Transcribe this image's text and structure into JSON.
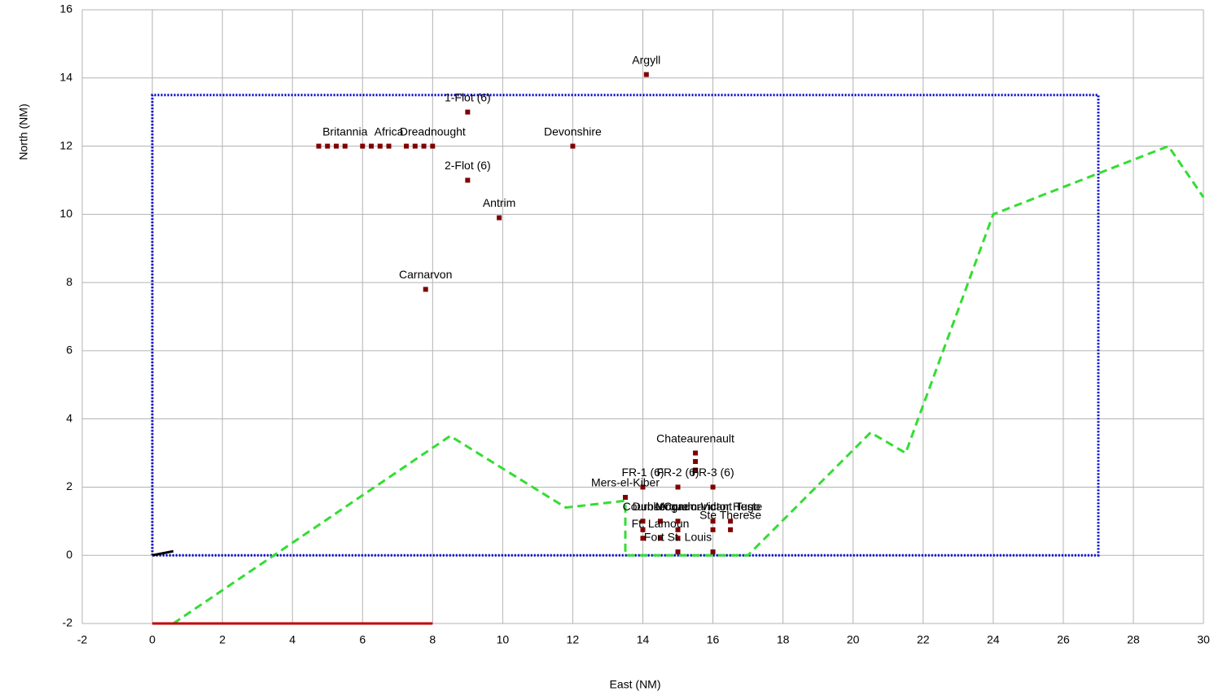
{
  "chart_data": {
    "type": "scatter",
    "x_label": "East (NM)",
    "y_label": "North (NM)",
    "xlim": [
      -2,
      30
    ],
    "ylim": [
      -2,
      16
    ],
    "xticks": [
      -2,
      0,
      2,
      4,
      6,
      8,
      10,
      12,
      14,
      16,
      18,
      20,
      22,
      24,
      26,
      28,
      30
    ],
    "yticks": [
      -2,
      0,
      2,
      4,
      6,
      8,
      10,
      12,
      14,
      16
    ],
    "grid": true,
    "points": {
      "color": "#800000",
      "x": [
        14.1,
        9,
        4.75,
        5,
        5.25,
        5.5,
        6,
        6.25,
        6.5,
        6.75,
        7.25,
        7.5,
        7.75,
        8,
        12,
        9,
        9.9,
        7.8,
        15.5,
        15.5,
        15.5,
        14,
        15,
        16,
        13.5,
        14,
        14,
        14,
        14.5,
        14.5,
        15,
        15,
        15,
        15,
        16,
        16,
        16,
        16.5,
        16.5
      ],
      "y": [
        14.1,
        13,
        12,
        12,
        12,
        12,
        12,
        12,
        12,
        12,
        12,
        12,
        12,
        12,
        12,
        11,
        9.9,
        7.8,
        3,
        2.75,
        2.5,
        2,
        2,
        2,
        1.7,
        1,
        0.75,
        0.5,
        1,
        0.5,
        1,
        0.75,
        0.5,
        0.1,
        1,
        0.75,
        0.1,
        1,
        0.75
      ],
      "labels": [
        "Argyll",
        "1-Flot (6)",
        null,
        null,
        null,
        "Britannia",
        null,
        null,
        null,
        "Africa",
        null,
        null,
        null,
        "Dreadnought",
        "Devonshire",
        "2-Flot (6)",
        "Antrim",
        "Carnarvon",
        "Chateaurenault",
        null,
        null,
        "FR-1 (6)",
        "FR-2 (6)",
        "FR-3 (6)",
        "Mers-el-Kiber",
        "Courbet",
        null,
        null,
        "Dunkerque",
        "Ft. Lamoun",
        "Mogador",
        null,
        null,
        "Fort St. Louis",
        "Commandant Teste",
        null,
        null,
        "Victor Hugo",
        "Ste Therese"
      ]
    },
    "lines": [
      {
        "color": "#0000cc",
        "style": "dotted",
        "x": [
          0,
          0,
          27,
          27,
          0
        ],
        "y": [
          0,
          13.5,
          13.5,
          0,
          0
        ]
      },
      {
        "color": "#33dd33",
        "style": "dashed",
        "x": [
          0.6,
          8.5,
          11.8,
          13.5,
          13.5,
          17,
          20.5,
          21.5,
          24,
          29,
          30
        ],
        "y": [
          -2,
          3.5,
          1.4,
          1.6,
          0,
          0,
          3.6,
          3.0,
          10,
          12,
          10.5
        ]
      },
      {
        "color": "#c00000",
        "style": "solid",
        "x": [
          0,
          8
        ],
        "y": [
          -2,
          -2
        ]
      },
      {
        "color": "#000000",
        "style": "solid",
        "x": [
          0,
          0.6
        ],
        "y": [
          0,
          0.12
        ]
      }
    ]
  }
}
